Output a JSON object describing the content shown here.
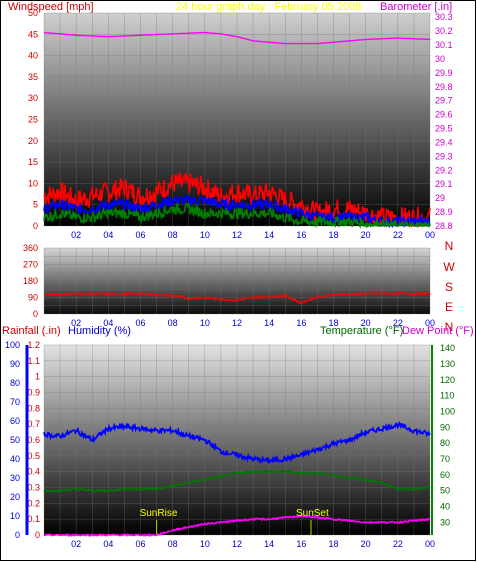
{
  "header": {
    "windspeed_label": "Windspeed [mph]",
    "title": "24 hour graph day : February 05 2008",
    "barometer_label": "Barometer [.in]"
  },
  "direction_labels": [
    "N",
    "W",
    "S",
    "E",
    "N"
  ],
  "lower_header": {
    "rainfall_label": "Rainfall (.in)",
    "humidity_label": "Humidity (%)",
    "temperature_label": "Temperature (°F)",
    "dewpoint_label": "Dew Point (°F)"
  },
  "annotations": {
    "sunrise": "SunRise",
    "sunset": "SunSet",
    "sunrise_hour": 7,
    "sunset_hour": 16.6
  },
  "colors": {
    "wind_gust": "#ff0000",
    "wind_avg": "#0000ff",
    "wind_low": "#008000",
    "barometer": "#ff00ff",
    "direction": "#ff0000",
    "humidity": "#0000ff",
    "temperature": "#007700",
    "dewpoint": "#ff00ff",
    "title": "#ffff00",
    "tick_hours": "#0000cc"
  },
  "chart_data": [
    {
      "type": "line",
      "name": "wind-barometer",
      "x_ticks": [
        "02",
        "04",
        "06",
        "08",
        "10",
        "12",
        "14",
        "16",
        "18",
        "20",
        "22",
        "00"
      ],
      "y_left": {
        "ticks": [
          0,
          5,
          10,
          15,
          20,
          25,
          30,
          35,
          40,
          45,
          50
        ],
        "ylim": [
          0,
          50
        ]
      },
      "y_right": {
        "ticks": [
          "28.8",
          "28.9",
          "29",
          "29.1",
          "29.2",
          "29.3",
          "29.4",
          "29.5",
          "29.6",
          "29.7",
          "29.8",
          "29.9",
          "30",
          "30.1",
          "30.2",
          "30.3"
        ],
        "ylim": [
          28.8,
          30.33
        ]
      },
      "series": [
        {
          "key": "barometer",
          "axis": "right",
          "x": [
            0,
            2,
            4,
            6,
            8,
            10,
            11,
            12,
            13,
            14,
            15,
            16,
            17,
            18,
            20,
            22,
            24
          ],
          "y": [
            30.19,
            30.17,
            30.16,
            30.17,
            30.18,
            30.19,
            30.18,
            30.16,
            30.13,
            30.12,
            30.11,
            30.11,
            30.11,
            30.12,
            30.14,
            30.15,
            30.14
          ]
        },
        {
          "key": "wind_gust",
          "axis": "left",
          "x": [
            0,
            1,
            2,
            3,
            4,
            5,
            6,
            7,
            8,
            9,
            10,
            11,
            12,
            13,
            14,
            15,
            16,
            17,
            18,
            19,
            20,
            21,
            22,
            23,
            24
          ],
          "y": [
            7,
            8,
            6,
            7,
            8,
            9,
            7,
            8,
            10,
            10,
            9,
            7,
            8,
            7,
            8,
            6,
            5,
            3,
            4,
            4,
            3,
            2,
            2,
            2,
            2
          ]
        },
        {
          "key": "wind_avg",
          "axis": "left",
          "x": [
            0,
            1,
            2,
            3,
            4,
            5,
            6,
            7,
            8,
            9,
            10,
            11,
            12,
            13,
            14,
            15,
            16,
            17,
            18,
            19,
            20,
            21,
            22,
            23,
            24
          ],
          "y": [
            4,
            5,
            4,
            4,
            5,
            5,
            4,
            5,
            6,
            6,
            6,
            5,
            5,
            5,
            5,
            4,
            3,
            2,
            2,
            2,
            2,
            1,
            1,
            1,
            1
          ]
        },
        {
          "key": "wind_low",
          "axis": "left",
          "x": [
            0,
            1,
            2,
            3,
            4,
            5,
            6,
            7,
            8,
            9,
            10,
            11,
            12,
            13,
            14,
            15,
            16,
            17,
            18,
            19,
            20,
            21,
            22,
            23,
            24
          ],
          "y": [
            2,
            3,
            2,
            2,
            3,
            3,
            2,
            3,
            4,
            4,
            3,
            3,
            3,
            3,
            3,
            2,
            1,
            1,
            1,
            1,
            0.5,
            0.3,
            0,
            0,
            0
          ]
        }
      ]
    },
    {
      "type": "line",
      "name": "wind-direction",
      "x_ticks": [
        "02",
        "04",
        "06",
        "08",
        "10",
        "12",
        "14",
        "16",
        "18",
        "20",
        "22",
        "00"
      ],
      "y_left": {
        "ticks": [
          0,
          45,
          90,
          135,
          180,
          225,
          270,
          315,
          360
        ],
        "ylim": [
          0,
          360
        ]
      },
      "series": [
        {
          "key": "direction",
          "x": [
            0,
            2,
            4,
            6,
            8,
            9,
            10,
            11,
            12,
            13,
            14,
            15,
            16,
            17,
            18,
            20,
            22,
            24
          ],
          "y": [
            105,
            110,
            108,
            110,
            100,
            85,
            90,
            80,
            75,
            90,
            95,
            100,
            60,
            95,
            105,
            110,
            112,
            110
          ]
        }
      ]
    },
    {
      "type": "line",
      "name": "humidity-temperature",
      "x_ticks": [
        "02",
        "04",
        "06",
        "08",
        "10",
        "12",
        "14",
        "16",
        "18",
        "20",
        "22",
        "00"
      ],
      "y_rain": {
        "ticks": [
          "0",
          "0.1",
          "0.2",
          "0.3",
          "0.4",
          "0.5",
          "0.6",
          "0.7",
          "0.8",
          "0.9",
          "1",
          "1.1",
          "1.2"
        ],
        "ylim": [
          0,
          1.2
        ]
      },
      "y_humidity": {
        "ticks": [
          0,
          10,
          20,
          30,
          40,
          50,
          60,
          70,
          80,
          90,
          100
        ],
        "ylim": [
          0,
          100
        ]
      },
      "y_temp": {
        "ticks": [
          30,
          40,
          50,
          60,
          70,
          80,
          90,
          100,
          110,
          120,
          130,
          140
        ],
        "ylim": [
          22,
          142
        ]
      },
      "series": [
        {
          "key": "humidity",
          "axis": "humidity",
          "x": [
            0,
            1,
            2,
            3,
            4,
            5,
            6,
            7,
            8,
            9,
            10,
            11,
            12,
            13,
            14,
            15,
            16,
            17,
            18,
            19,
            20,
            21,
            22,
            23,
            24
          ],
          "y": [
            53,
            52,
            55,
            50,
            56,
            57,
            56,
            55,
            55,
            52,
            50,
            44,
            42,
            40,
            39,
            40,
            42,
            45,
            48,
            50,
            54,
            56,
            58,
            55,
            53
          ]
        },
        {
          "key": "temperature",
          "axis": "temp",
          "x": [
            0,
            1,
            2,
            3,
            4,
            5,
            6,
            7,
            8,
            9,
            10,
            11,
            12,
            13,
            14,
            15,
            16,
            17,
            18,
            19,
            20,
            21,
            22,
            23,
            24
          ],
          "y": [
            50,
            50,
            51,
            50,
            50,
            51,
            51,
            51,
            53,
            55,
            57,
            59,
            61,
            62,
            62,
            62,
            61,
            61,
            60,
            58,
            57,
            55,
            51,
            51,
            52
          ]
        },
        {
          "key": "dewpoint",
          "axis": "temp",
          "x": [
            0,
            1,
            2,
            3,
            4,
            5,
            6,
            7,
            8,
            9,
            10,
            11,
            12,
            13,
            14,
            15,
            16,
            17,
            18,
            19,
            20,
            21,
            22,
            23,
            24
          ],
          "y": [
            22,
            22,
            22,
            22,
            22,
            22,
            22,
            22,
            25,
            27,
            29,
            30,
            31,
            32,
            32,
            33,
            34,
            33,
            32,
            31,
            30,
            30,
            30,
            31,
            32
          ]
        }
      ]
    }
  ]
}
